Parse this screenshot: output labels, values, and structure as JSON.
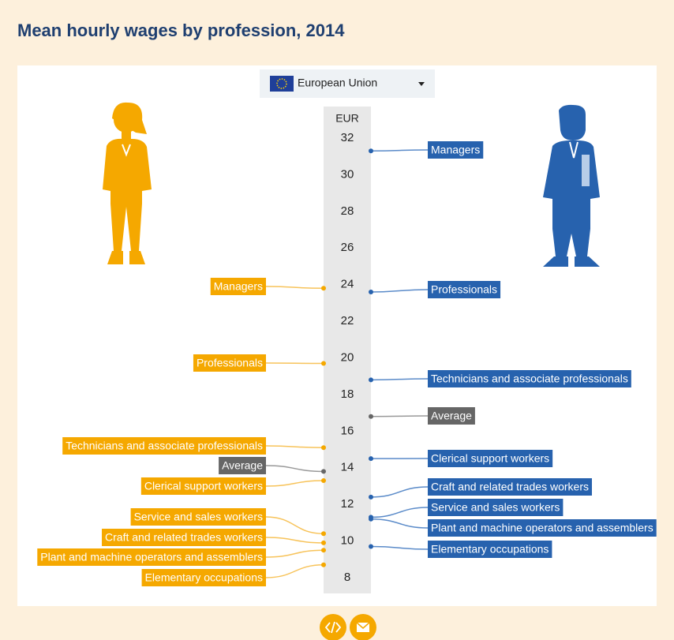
{
  "chart_data": {
    "type": "dot-axis",
    "title": "Mean hourly wages by profession, 2014",
    "dropdown": "European Union",
    "axis_label": "EUR",
    "ylim": [
      8,
      32
    ],
    "yticks": [
      32,
      30,
      28,
      26,
      24,
      22,
      20,
      18,
      16,
      14,
      12,
      10,
      8
    ],
    "left": {
      "color": "#f5a800",
      "categories": [
        "Managers",
        "Professionals",
        "Technicians and associate professionals",
        "Clerical support workers",
        "Service and sales workers",
        "Craft and related trades workers",
        "Plant and machine operators and assemblers",
        "Elementary occupations"
      ],
      "values": [
        23.8,
        19.7,
        15.1,
        13.3,
        10.4,
        9.9,
        9.5,
        8.7
      ],
      "average": {
        "label": "Average",
        "value": 13.8,
        "color": "#666666"
      }
    },
    "right": {
      "color": "#2762ae",
      "categories": [
        "Managers",
        "Professionals",
        "Technicians and associate professionals",
        "Clerical support workers",
        "Craft and related trades workers",
        "Service and sales workers",
        "Plant and machine operators and assemblers",
        "Elementary occupations"
      ],
      "values": [
        31.3,
        23.6,
        18.8,
        14.5,
        12.4,
        11.3,
        11.2,
        9.7
      ],
      "average": {
        "label": "Average",
        "value": 16.8,
        "color": "#666666"
      }
    }
  }
}
